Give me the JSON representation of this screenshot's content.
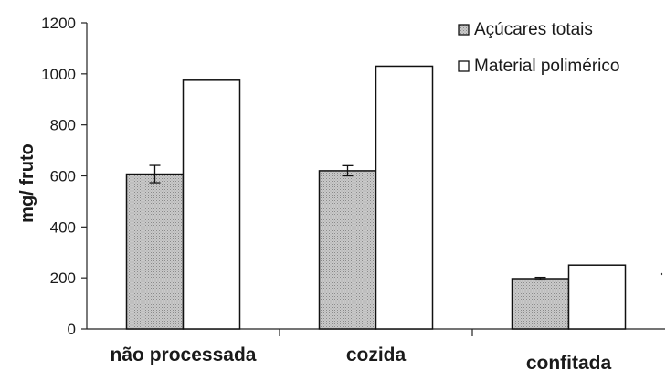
{
  "chart_data": {
    "type": "bar",
    "categories": [
      "não processada",
      "cozida",
      "confitada"
    ],
    "series": [
      {
        "name": "Açúcares totais",
        "values": [
          607,
          620,
          197
        ],
        "errors": [
          34,
          20,
          5
        ],
        "color": "#c4c4c4",
        "pattern": "dotted"
      },
      {
        "name": "Material polimérico",
        "values": [
          975,
          1030,
          250
        ],
        "color": "#ffffff"
      }
    ],
    "title": "",
    "xlabel": "",
    "ylabel": "mg/ fruto",
    "ylim": [
      0,
      1200
    ],
    "yticks": [
      0,
      200,
      400,
      600,
      800,
      1000,
      1200
    ],
    "grid": false,
    "legend_position": "top-right"
  }
}
